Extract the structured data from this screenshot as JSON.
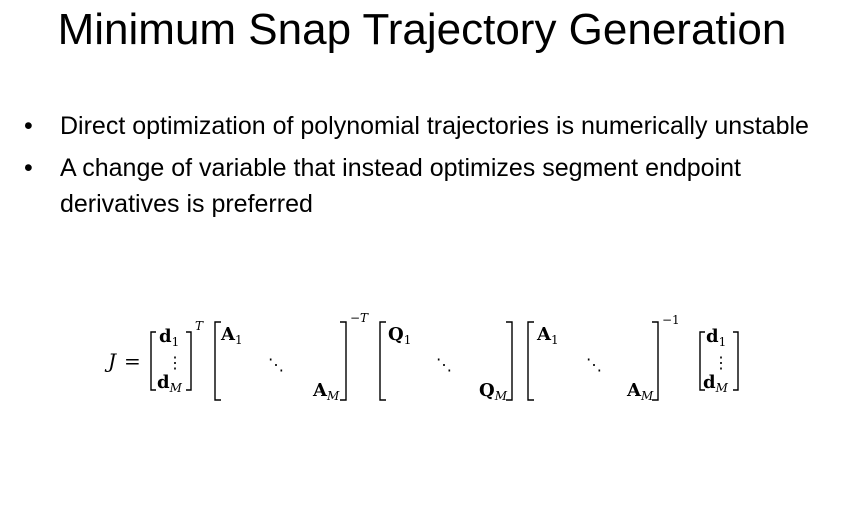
{
  "slide": {
    "title": "Minimum Snap Trajectory Generation",
    "bullets": [
      {
        "marker": "•",
        "text": "Direct optimization of polynomial trajectories is numerically unstable"
      },
      {
        "marker": "•",
        "text": "A change of variable that instead optimizes segment endpoint derivatives is preferred"
      }
    ]
  },
  "equation": {
    "lhs": "J",
    "equals": "=",
    "d_top": "d",
    "d_top_sub": "1",
    "d_bottom": "d",
    "d_bottom_sub": "M",
    "vdots": "⋮",
    "ddots": "⋱",
    "A_top": "A",
    "A_top_sub": "1",
    "A_bottom": "A",
    "A_bottom_sub": "M",
    "Q_top": "Q",
    "Q_top_sub": "1",
    "Q_bottom": "Q",
    "Q_bottom_sub": "M",
    "transpose": "T",
    "inverse_transpose": "−T",
    "inverse": "−1"
  }
}
